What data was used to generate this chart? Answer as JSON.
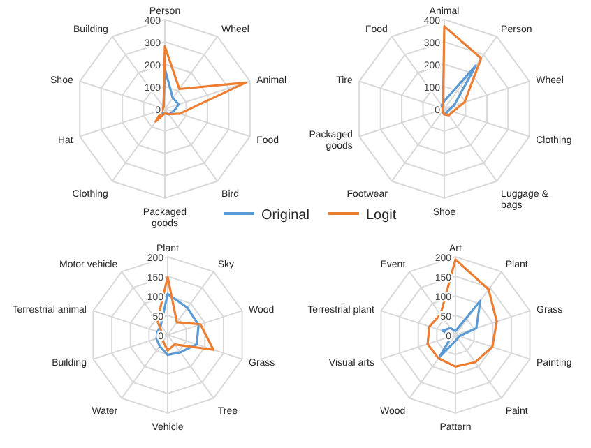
{
  "chart_data": [
    {
      "type": "radar",
      "categories": [
        "Person",
        "Wheel",
        "Animal",
        "Food",
        "Bird",
        "Packaged goods",
        "Clothing",
        "Hat",
        "Shoe",
        "Building"
      ],
      "ylim": [
        0,
        400
      ],
      "yticks": [
        0,
        100,
        200,
        300,
        400
      ],
      "grid": true,
      "legend": "bottom",
      "series": [
        {
          "name": "Original",
          "color": "#5b9bd5",
          "values": [
            180,
            60,
            65,
            40,
            30,
            20,
            20,
            15,
            10,
            10
          ]
        },
        {
          "name": "Logit",
          "color": "#ed7d31",
          "values": [
            280,
            110,
            380,
            70,
            30,
            20,
            70,
            10,
            10,
            10
          ]
        }
      ]
    },
    {
      "type": "radar",
      "categories": [
        "Animal",
        "Person",
        "Wheel",
        "Clothing",
        "Luggage & bags",
        "Shoe",
        "Footwear",
        "Packaged goods",
        "Tire",
        "Food"
      ],
      "ylim": [
        0,
        400
      ],
      "yticks": [
        0,
        100,
        200,
        300,
        400
      ],
      "grid": true,
      "series": [
        {
          "color": "#5b9bd5",
          "values": [
            35,
            240,
            45,
            20,
            20,
            25,
            15,
            10,
            15,
            20
          ]
        },
        {
          "color": "#ed7d31",
          "values": [
            370,
            280,
            95,
            40,
            35,
            25,
            15,
            10,
            10,
            10
          ]
        }
      ]
    },
    {
      "type": "radar",
      "categories": [
        "Plant",
        "Sky",
        "Wood",
        "Grass",
        "Tree",
        "Vehicle",
        "Water",
        "Building",
        "Terrestrial animal",
        "Motor vehicle"
      ],
      "ylim": [
        0,
        200
      ],
      "yticks": [
        0,
        50,
        100,
        150,
        200
      ],
      "grid": true,
      "series": [
        {
          "color": "#5b9bd5",
          "values": [
            105,
            86,
            83,
            78,
            55,
            51,
            35,
            30,
            27,
            30
          ]
        },
        {
          "color": "#ed7d31",
          "values": [
            148,
            40,
            88,
            123,
            30,
            40,
            20,
            20,
            15,
            45
          ]
        }
      ]
    },
    {
      "type": "radar",
      "categories": [
        "Art",
        "Plant",
        "Grass",
        "Painting",
        "Paint",
        "Pattern",
        "Wood",
        "Visual arts",
        "Terrestrial plant",
        "Event"
      ],
      "ylim": [
        0,
        200
      ],
      "yticks": [
        0,
        50,
        100,
        150,
        200
      ],
      "grid": true,
      "series": [
        {
          "color": "#5b9bd5",
          "values": [
            10,
            108,
            56,
            10,
            10,
            15,
            72,
            10,
            35,
            22
          ]
        },
        {
          "color": "#ed7d31",
          "values": [
            193,
            144,
            111,
            99,
            86,
            81,
            74,
            75,
            70,
            65
          ]
        }
      ]
    }
  ]
}
